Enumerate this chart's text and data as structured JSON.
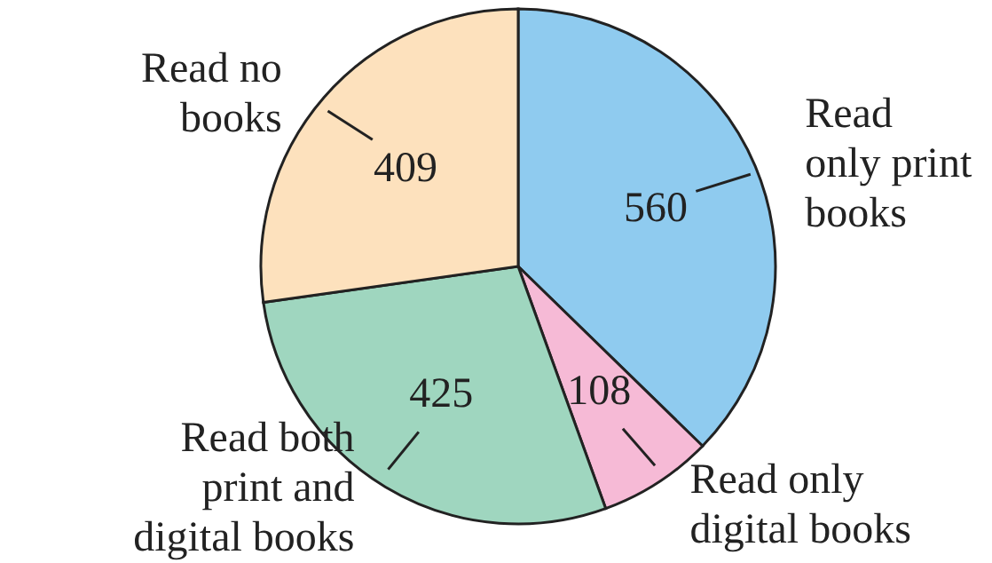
{
  "chart_data": {
    "type": "pie",
    "categories": [
      "Read\nonly print\nbooks",
      "Read only\ndigital books",
      "Read both\nprint and\ndigital books",
      "Read no\nbooks"
    ],
    "values": [
      560,
      108,
      425,
      409
    ],
    "colors": [
      "#8fcbef",
      "#f6bad6",
      "#9fd6bf",
      "#fde1bd"
    ],
    "data_labels": true
  }
}
